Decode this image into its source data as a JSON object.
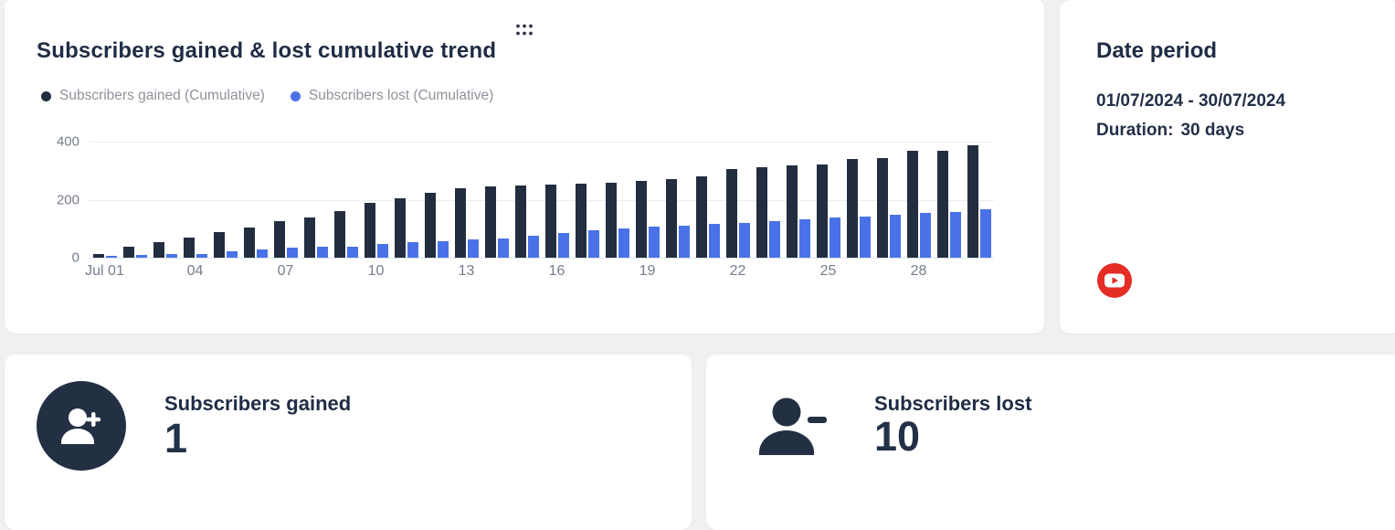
{
  "colors": {
    "page_bg": "#eef0f2",
    "card_bg": "#ffffff",
    "dark_navy": "#222e40",
    "blue": "#4a72e8",
    "axis_gray": "#757d8a",
    "legend_gray": "#8e939b",
    "gridline": "#e9edf4",
    "youtube_red": "#e42d24"
  },
  "chart_data": {
    "type": "bar",
    "title": "Subscribers gained & lost cumulative trend",
    "categories": [
      "Jul 01",
      "Jul 02",
      "Jul 03",
      "Jul 04",
      "Jul 05",
      "Jul 06",
      "Jul 07",
      "Jul 08",
      "Jul 09",
      "Jul 10",
      "Jul 11",
      "Jul 12",
      "Jul 13",
      "Jul 14",
      "Jul 15",
      "Jul 16",
      "Jul 17",
      "Jul 18",
      "Jul 19",
      "Jul 20",
      "Jul 21",
      "Jul 22",
      "Jul 23",
      "Jul 24",
      "Jul 25",
      "Jul 26",
      "Jul 27",
      "Jul 28",
      "Jul 29",
      "Jul 30"
    ],
    "series": [
      {
        "name": "Subscribers gained (Cumulative)",
        "color": "#222e40",
        "values": [
          12,
          38,
          55,
          70,
          88,
          104,
          125,
          140,
          162,
          190,
          204,
          225,
          238,
          246,
          249,
          252,
          256,
          259,
          264,
          270,
          280,
          304,
          313,
          318,
          321,
          341,
          344,
          368,
          369,
          386
        ]
      },
      {
        "name": "Subscribers lost (Cumulative)",
        "color": "#4a72e8",
        "values": [
          5,
          11,
          13,
          14,
          21,
          29,
          34,
          37,
          38,
          46,
          53,
          57,
          62,
          66,
          76,
          86,
          95,
          102,
          107,
          111,
          117,
          120,
          127,
          131,
          138,
          141,
          148,
          154,
          157,
          166
        ]
      }
    ],
    "x_tick_labels": [
      "Jul 01",
      "04",
      "07",
      "10",
      "13",
      "16",
      "19",
      "22",
      "25",
      "28"
    ],
    "x_tick_every": 3,
    "y_ticks": [
      0,
      200,
      400
    ],
    "ylim": [
      0,
      400
    ],
    "grid": true,
    "legend_position": "top-left"
  },
  "date_card": {
    "title": "Date period",
    "range": "01/07/2024 - 30/07/2024",
    "duration_label": "Duration:",
    "duration_value": "30 days"
  },
  "stat_cards": {
    "gained": {
      "label": "Subscribers gained",
      "value": "1"
    },
    "lost": {
      "label": "Subscribers lost",
      "value": "10"
    }
  }
}
